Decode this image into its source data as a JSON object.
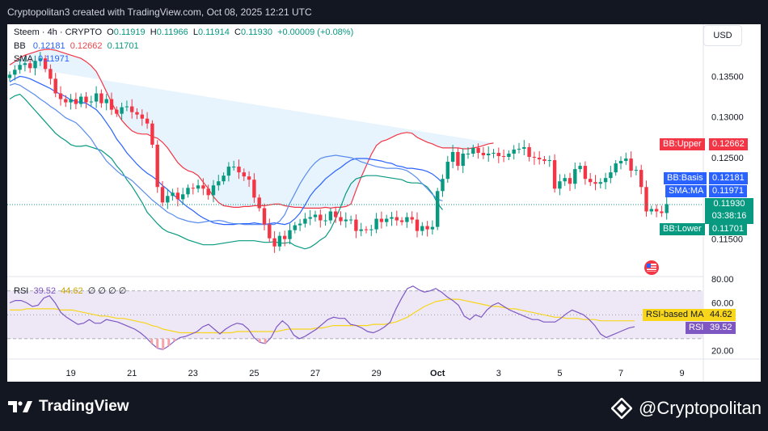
{
  "header": {
    "caption": "Cryptopolitan3 created with TradingView.com, Oct 08, 2025 12:21 UTC"
  },
  "toolbar": {
    "currency_button": "USD"
  },
  "legend": {
    "symbol": "Steem · 4h · CRYPTO",
    "open_label": "O",
    "open": "0.11919",
    "high_label": "H",
    "high": "0.11966",
    "low_label": "L",
    "low": "0.11914",
    "close_label": "C",
    "close": "0.11930",
    "change": "+0.00009 (+0.08%)",
    "bb_label": "BB",
    "bb_basis": "0.12181",
    "bb_upper": "0.12662",
    "bb_lower": "0.11701",
    "sma_label": "SMA",
    "sma_value": "0.11971",
    "rsi_label": "RSI",
    "rsi_value": "39.52",
    "rsi_ma_value": "44.62",
    "rsi_placeholders": "∅ ∅ ∅ ∅"
  },
  "price_tags": {
    "bb_upper": {
      "label": "BB:Upper",
      "value": "0.12662"
    },
    "bb_basis": {
      "label": "BB:Basis",
      "value": "0.12181"
    },
    "sma": {
      "label": "SMA:MA",
      "value": "0.11971"
    },
    "last": {
      "value": "0.11930",
      "countdown": "03:38:16"
    },
    "bb_lower": {
      "label": "BB:Lower",
      "value": "0.11701"
    },
    "rsi_ma": {
      "label": "RSI-based MA",
      "value": "44.62"
    },
    "rsi": {
      "label": "RSI",
      "value": "39.52"
    }
  },
  "colors": {
    "up": "#089981",
    "down": "#f23645",
    "bb_basis": "#2962ff",
    "bb_upper": "#f23645",
    "bb_lower": "#089981",
    "bb_fill": "#e3f2fd",
    "rsi": "#7e57c2",
    "rsi_ma": "#f7d61b",
    "rsi_band": "#ede7f6"
  },
  "footer": {
    "tradingview": "TradingView",
    "watermark": "@Cryptopolitan"
  },
  "chart_data": [
    {
      "type": "candlestick",
      "title": "Steem · 4h · CRYPTO",
      "yticks": [
        0.135,
        0.13,
        0.125,
        0.115
      ],
      "ytick_labels": [
        "0.13500",
        "0.13000",
        "0.12500",
        "0.11500"
      ],
      "ylim": [
        0.1104,
        0.1404
      ],
      "x_tick_labels": [
        "19",
        "21",
        "23",
        "25",
        "27",
        "29",
        "Oct",
        "3",
        "5",
        "7",
        "9"
      ],
      "x_tick_index": [
        12,
        24,
        36,
        48,
        60,
        72,
        84,
        96,
        108,
        120,
        132
      ],
      "close": [
        0.1352,
        0.1358,
        0.1364,
        0.1366,
        0.136,
        0.1369,
        0.1372,
        0.1359,
        0.1347,
        0.1329,
        0.1322,
        0.1318,
        0.1322,
        0.1316,
        0.1325,
        0.1318,
        0.1319,
        0.1329,
        0.1317,
        0.1322,
        0.1309,
        0.1304,
        0.1312,
        0.1313,
        0.1306,
        0.1303,
        0.1298,
        0.1292,
        0.1266,
        0.1214,
        0.1195,
        0.1203,
        0.1207,
        0.1199,
        0.1205,
        0.1213,
        0.1212,
        0.1216,
        0.1212,
        0.1204,
        0.1216,
        0.1221,
        0.1228,
        0.1239,
        0.1239,
        0.1232,
        0.1227,
        0.1223,
        0.1201,
        0.1188,
        0.1168,
        0.1151,
        0.1141,
        0.1154,
        0.115,
        0.1161,
        0.1167,
        0.1169,
        0.1175,
        0.1177,
        0.118,
        0.1173,
        0.1173,
        0.1184,
        0.1177,
        0.1172,
        0.1174,
        0.1174,
        0.116,
        0.1162,
        0.1161,
        0.1162,
        0.1175,
        0.1171,
        0.1175,
        0.1177,
        0.1173,
        0.1171,
        0.1177,
        0.1174,
        0.116,
        0.1166,
        0.1162,
        0.1165,
        0.1209,
        0.1224,
        0.1245,
        0.1257,
        0.124,
        0.1255,
        0.1255,
        0.1262,
        0.1256,
        0.1253,
        0.1255,
        0.1256,
        0.1252,
        0.1251,
        0.1255,
        0.126,
        0.1261,
        0.1263,
        0.1251,
        0.125,
        0.1248,
        0.1246,
        0.1247,
        0.1212,
        0.1221,
        0.1225,
        0.1218,
        0.1236,
        0.124,
        0.1224,
        0.122,
        0.1218,
        0.122,
        0.1225,
        0.1232,
        0.1243,
        0.1246,
        0.1249,
        0.1234,
        0.1235,
        0.1214,
        0.1184,
        0.1187,
        0.1184,
        0.1182,
        0.1193
      ],
      "series": [
        {
          "name": "BB:Upper",
          "values": [
            0.1364,
            0.1368,
            0.1373,
            0.1376,
            0.1378,
            0.138,
            0.1382,
            0.1383,
            0.1383,
            0.1382,
            0.138,
            0.1378,
            0.1376,
            0.1374,
            0.1372,
            0.1368,
            0.1363,
            0.1356,
            0.1344,
            0.1331,
            0.1318,
            0.1306,
            0.1296,
            0.1289,
            0.1283,
            0.128,
            0.1279,
            0.1279,
            0.1276,
            0.1274,
            0.1269,
            0.1262,
            0.1253,
            0.1244,
            0.1238,
            0.1234,
            0.1232,
            0.1228,
            0.122,
            0.1212,
            0.1202,
            0.1195,
            0.1191,
            0.119,
            0.1189,
            0.1189,
            0.119,
            0.119,
            0.1191,
            0.1191,
            0.1191,
            0.1192,
            0.1193,
            0.1193,
            0.1191,
            0.119,
            0.1189,
            0.1189,
            0.1188,
            0.1188,
            0.1188,
            0.1188,
            0.1189,
            0.1188,
            0.1189,
            0.1189,
            0.119,
            0.1193,
            0.121,
            0.1226,
            0.124,
            0.1254,
            0.1265,
            0.127,
            0.1272,
            0.1275,
            0.1278,
            0.128,
            0.1281,
            0.128,
            0.1275,
            0.1272,
            0.1269,
            0.1267,
            0.1264,
            0.1262,
            0.1262,
            0.1262,
            0.1262,
            0.1261,
            0.1261,
            0.1262,
            0.1263,
            0.1265,
            0.1267,
            0.1268
          ]
        },
        {
          "name": "BB:Basis",
          "values": [
            0.1343,
            0.1347,
            0.135,
            0.1349,
            0.1347,
            0.1344,
            0.1341,
            0.1338,
            0.1335,
            0.1331,
            0.1328,
            0.1325,
            0.1321,
            0.1319,
            0.1318,
            0.1317,
            0.1313,
            0.1309,
            0.1302,
            0.1293,
            0.1284,
            0.1273,
            0.1265,
            0.1256,
            0.1249,
            0.1242,
            0.1236,
            0.1231,
            0.1227,
            0.1222,
            0.1216,
            0.1211,
            0.1205,
            0.12,
            0.1194,
            0.1189,
            0.1185,
            0.118,
            0.1176,
            0.1173,
            0.117,
            0.1169,
            0.1168,
            0.1168,
            0.1168,
            0.1169,
            0.1169,
            0.1169,
            0.117,
            0.1169,
            0.1168,
            0.1169,
            0.117,
            0.1169,
            0.1168,
            0.117,
            0.1175,
            0.1182,
            0.1192,
            0.1203,
            0.1211,
            0.1217,
            0.1224,
            0.1229,
            0.1234,
            0.1238,
            0.1243,
            0.1247,
            0.1249,
            0.1249,
            0.1249,
            0.1248,
            0.1247,
            0.1246,
            0.1244,
            0.1243,
            0.124,
            0.1239,
            0.1237,
            0.1237,
            0.1236,
            0.1235,
            0.1233,
            0.123,
            0.1225,
            0.1219
          ]
        },
        {
          "name": "BB:Lower",
          "values": [
            0.1322,
            0.1326,
            0.1328,
            0.1322,
            0.1315,
            0.1308,
            0.1301,
            0.1294,
            0.1287,
            0.128,
            0.1275,
            0.1271,
            0.1266,
            0.1264,
            0.1264,
            0.1265,
            0.1263,
            0.1261,
            0.1259,
            0.1254,
            0.1249,
            0.124,
            0.1233,
            0.1223,
            0.1215,
            0.1205,
            0.1195,
            0.1183,
            0.1176,
            0.1169,
            0.1163,
            0.1159,
            0.1157,
            0.1155,
            0.1152,
            0.1149,
            0.1147,
            0.1145,
            0.1143,
            0.1143,
            0.1143,
            0.1144,
            0.1145,
            0.1146,
            0.1147,
            0.1148,
            0.1148,
            0.1148,
            0.1148,
            0.1147,
            0.1146,
            0.1146,
            0.1147,
            0.1145,
            0.1145,
            0.1146,
            0.1142,
            0.114,
            0.1138,
            0.114,
            0.1144,
            0.1149,
            0.1153,
            0.1162,
            0.1175,
            0.119,
            0.1206,
            0.1218,
            0.1224,
            0.1226,
            0.1228,
            0.1228,
            0.1228,
            0.1227,
            0.1226,
            0.1225,
            0.1224,
            0.1223,
            0.122,
            0.1219,
            0.1219,
            0.1218,
            0.1214,
            0.1206,
            0.1194,
            0.1186
          ]
        },
        {
          "name": "SMA:MA",
          "values": [
            0.1339,
            0.1341,
            0.1339,
            0.1335,
            0.1331,
            0.1327,
            0.1322,
            0.1318,
            0.1313,
            0.1309,
            0.1304,
            0.1299,
            0.1296,
            0.1293,
            0.1287,
            0.128,
            0.1273,
            0.1263,
            0.1255,
            0.1246,
            0.124,
            0.1234,
            0.1229,
            0.1226,
            0.1222,
            0.1216,
            0.121,
            0.1204,
            0.1198,
            0.1193,
            0.1188,
            0.1183,
            0.118,
            0.1176,
            0.1174,
            0.1172,
            0.1171,
            0.117,
            0.1171,
            0.1172,
            0.1172,
            0.1173,
            0.1172,
            0.117,
            0.1169,
            0.1169,
            0.1168,
            0.1168,
            0.1168,
            0.1168,
            0.1168,
            0.1168,
            0.1168,
            0.1172,
            0.118,
            0.1194,
            0.1206,
            0.1218,
            0.1228,
            0.1237,
            0.1244,
            0.1249,
            0.1251,
            0.1252,
            0.1253,
            0.1252,
            0.1251,
            0.125,
            0.1248,
            0.1245,
            0.1243,
            0.1241,
            0.1239,
            0.1238,
            0.1237,
            0.1237,
            0.1237,
            0.1236,
            0.1234,
            0.123,
            0.1225,
            0.1218,
            0.1212,
            0.1205,
            0.1199,
            0.1197
          ]
        }
      ]
    },
    {
      "type": "line",
      "title": "RSI",
      "yticks": [
        80,
        60,
        20
      ],
      "ytick_labels": [
        "80.00",
        "60.00",
        "20.00"
      ],
      "ylim": [
        13,
        82
      ],
      "bands": [
        30,
        70
      ],
      "series": [
        {
          "name": "RSI",
          "values": [
            60,
            62,
            62,
            60,
            57,
            58,
            64,
            66,
            60,
            52,
            48,
            45,
            42,
            43,
            46,
            43,
            43,
            46,
            45,
            44,
            42,
            40,
            38,
            35,
            31,
            26,
            22,
            21,
            24,
            28,
            31,
            32,
            34,
            36,
            40,
            42,
            38,
            34,
            38,
            41,
            43,
            42,
            38,
            31,
            27,
            26,
            31,
            40,
            45,
            41,
            33,
            30,
            32,
            35,
            38,
            42,
            46,
            48,
            47,
            47,
            42,
            41,
            39,
            36,
            35,
            37,
            40,
            44,
            55,
            64,
            72,
            74,
            71,
            69,
            70,
            72,
            69,
            65,
            62,
            58,
            49,
            46,
            50,
            48,
            54,
            58,
            60,
            57,
            54,
            52,
            50,
            48,
            46,
            46,
            44,
            44,
            44,
            47,
            51,
            54,
            52,
            50,
            46,
            41,
            34,
            31,
            33,
            35,
            37,
            39,
            40
          ]
        },
        {
          "name": "RSI-based MA",
          "values": [
            54,
            54,
            54,
            55,
            55,
            55,
            55,
            55,
            55,
            54,
            54,
            54,
            53,
            52,
            51,
            50,
            49,
            49,
            48,
            47,
            47,
            46,
            45,
            44,
            43,
            41,
            40,
            38,
            37,
            36,
            35,
            35,
            35,
            35,
            35,
            35,
            35,
            35,
            35,
            35,
            36,
            36,
            36,
            36,
            36,
            36,
            36,
            36,
            37,
            38,
            38,
            38,
            38,
            38,
            39,
            39,
            40,
            41,
            41,
            41,
            41,
            41,
            41,
            41,
            42,
            42,
            42,
            43,
            44,
            46,
            48,
            51,
            54,
            57,
            59,
            61,
            62,
            63,
            63,
            63,
            62,
            61,
            60,
            59,
            58,
            57,
            57,
            56,
            55,
            55,
            54,
            53,
            52,
            51,
            50,
            49,
            48,
            48,
            47,
            47,
            47,
            46,
            46,
            46,
            45,
            45,
            45,
            45,
            45,
            45,
            45
          ]
        }
      ]
    }
  ]
}
